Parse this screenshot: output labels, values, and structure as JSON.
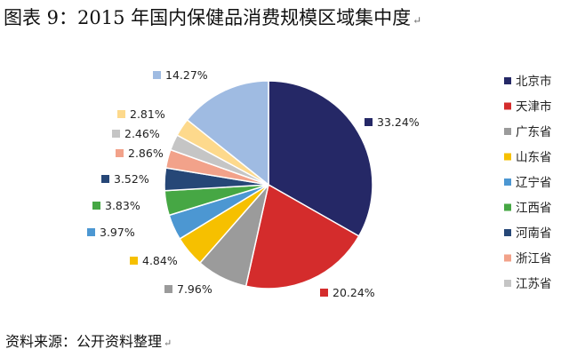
{
  "title": "图表 9：2015 年国内保健品消费规模区域集中度",
  "source": "资料来源：公开资料整理",
  "chart_data": {
    "type": "pie",
    "title": "图表 9：2015 年国内保健品消费规模区域集中度",
    "legend_position": "right",
    "slices": [
      {
        "label": "北京市",
        "value": 33.24,
        "text": "33.24%",
        "color": "#252866",
        "in_legend": true
      },
      {
        "label": "天津市",
        "value": 20.24,
        "text": "20.24%",
        "color": "#d42c2c",
        "in_legend": true
      },
      {
        "label": "广东省",
        "value": 7.96,
        "text": "7.96%",
        "color": "#9b9b9b",
        "in_legend": true
      },
      {
        "label": "山东省",
        "value": 4.84,
        "text": "4.84%",
        "color": "#f6c000",
        "in_legend": true
      },
      {
        "label": "辽宁省",
        "value": 3.97,
        "text": "3.97%",
        "color": "#4c97d2",
        "in_legend": true
      },
      {
        "label": "江西省",
        "value": 3.83,
        "text": "3.83%",
        "color": "#46a744",
        "in_legend": true
      },
      {
        "label": "河南省",
        "value": 3.52,
        "text": "3.52%",
        "color": "#264777",
        "in_legend": true
      },
      {
        "label": "浙江省",
        "value": 2.86,
        "text": "2.86%",
        "color": "#f2a28a",
        "in_legend": true
      },
      {
        "label": "江苏省",
        "value": 2.46,
        "text": "2.46%",
        "color": "#c5c5c5",
        "in_legend": true
      },
      {
        "label": "",
        "value": 2.81,
        "text": "2.81%",
        "color": "#fdd98c",
        "in_legend": false
      },
      {
        "label": "",
        "value": 14.27,
        "text": "14.27%",
        "color": "#9fbbe2",
        "in_legend": false
      }
    ]
  }
}
